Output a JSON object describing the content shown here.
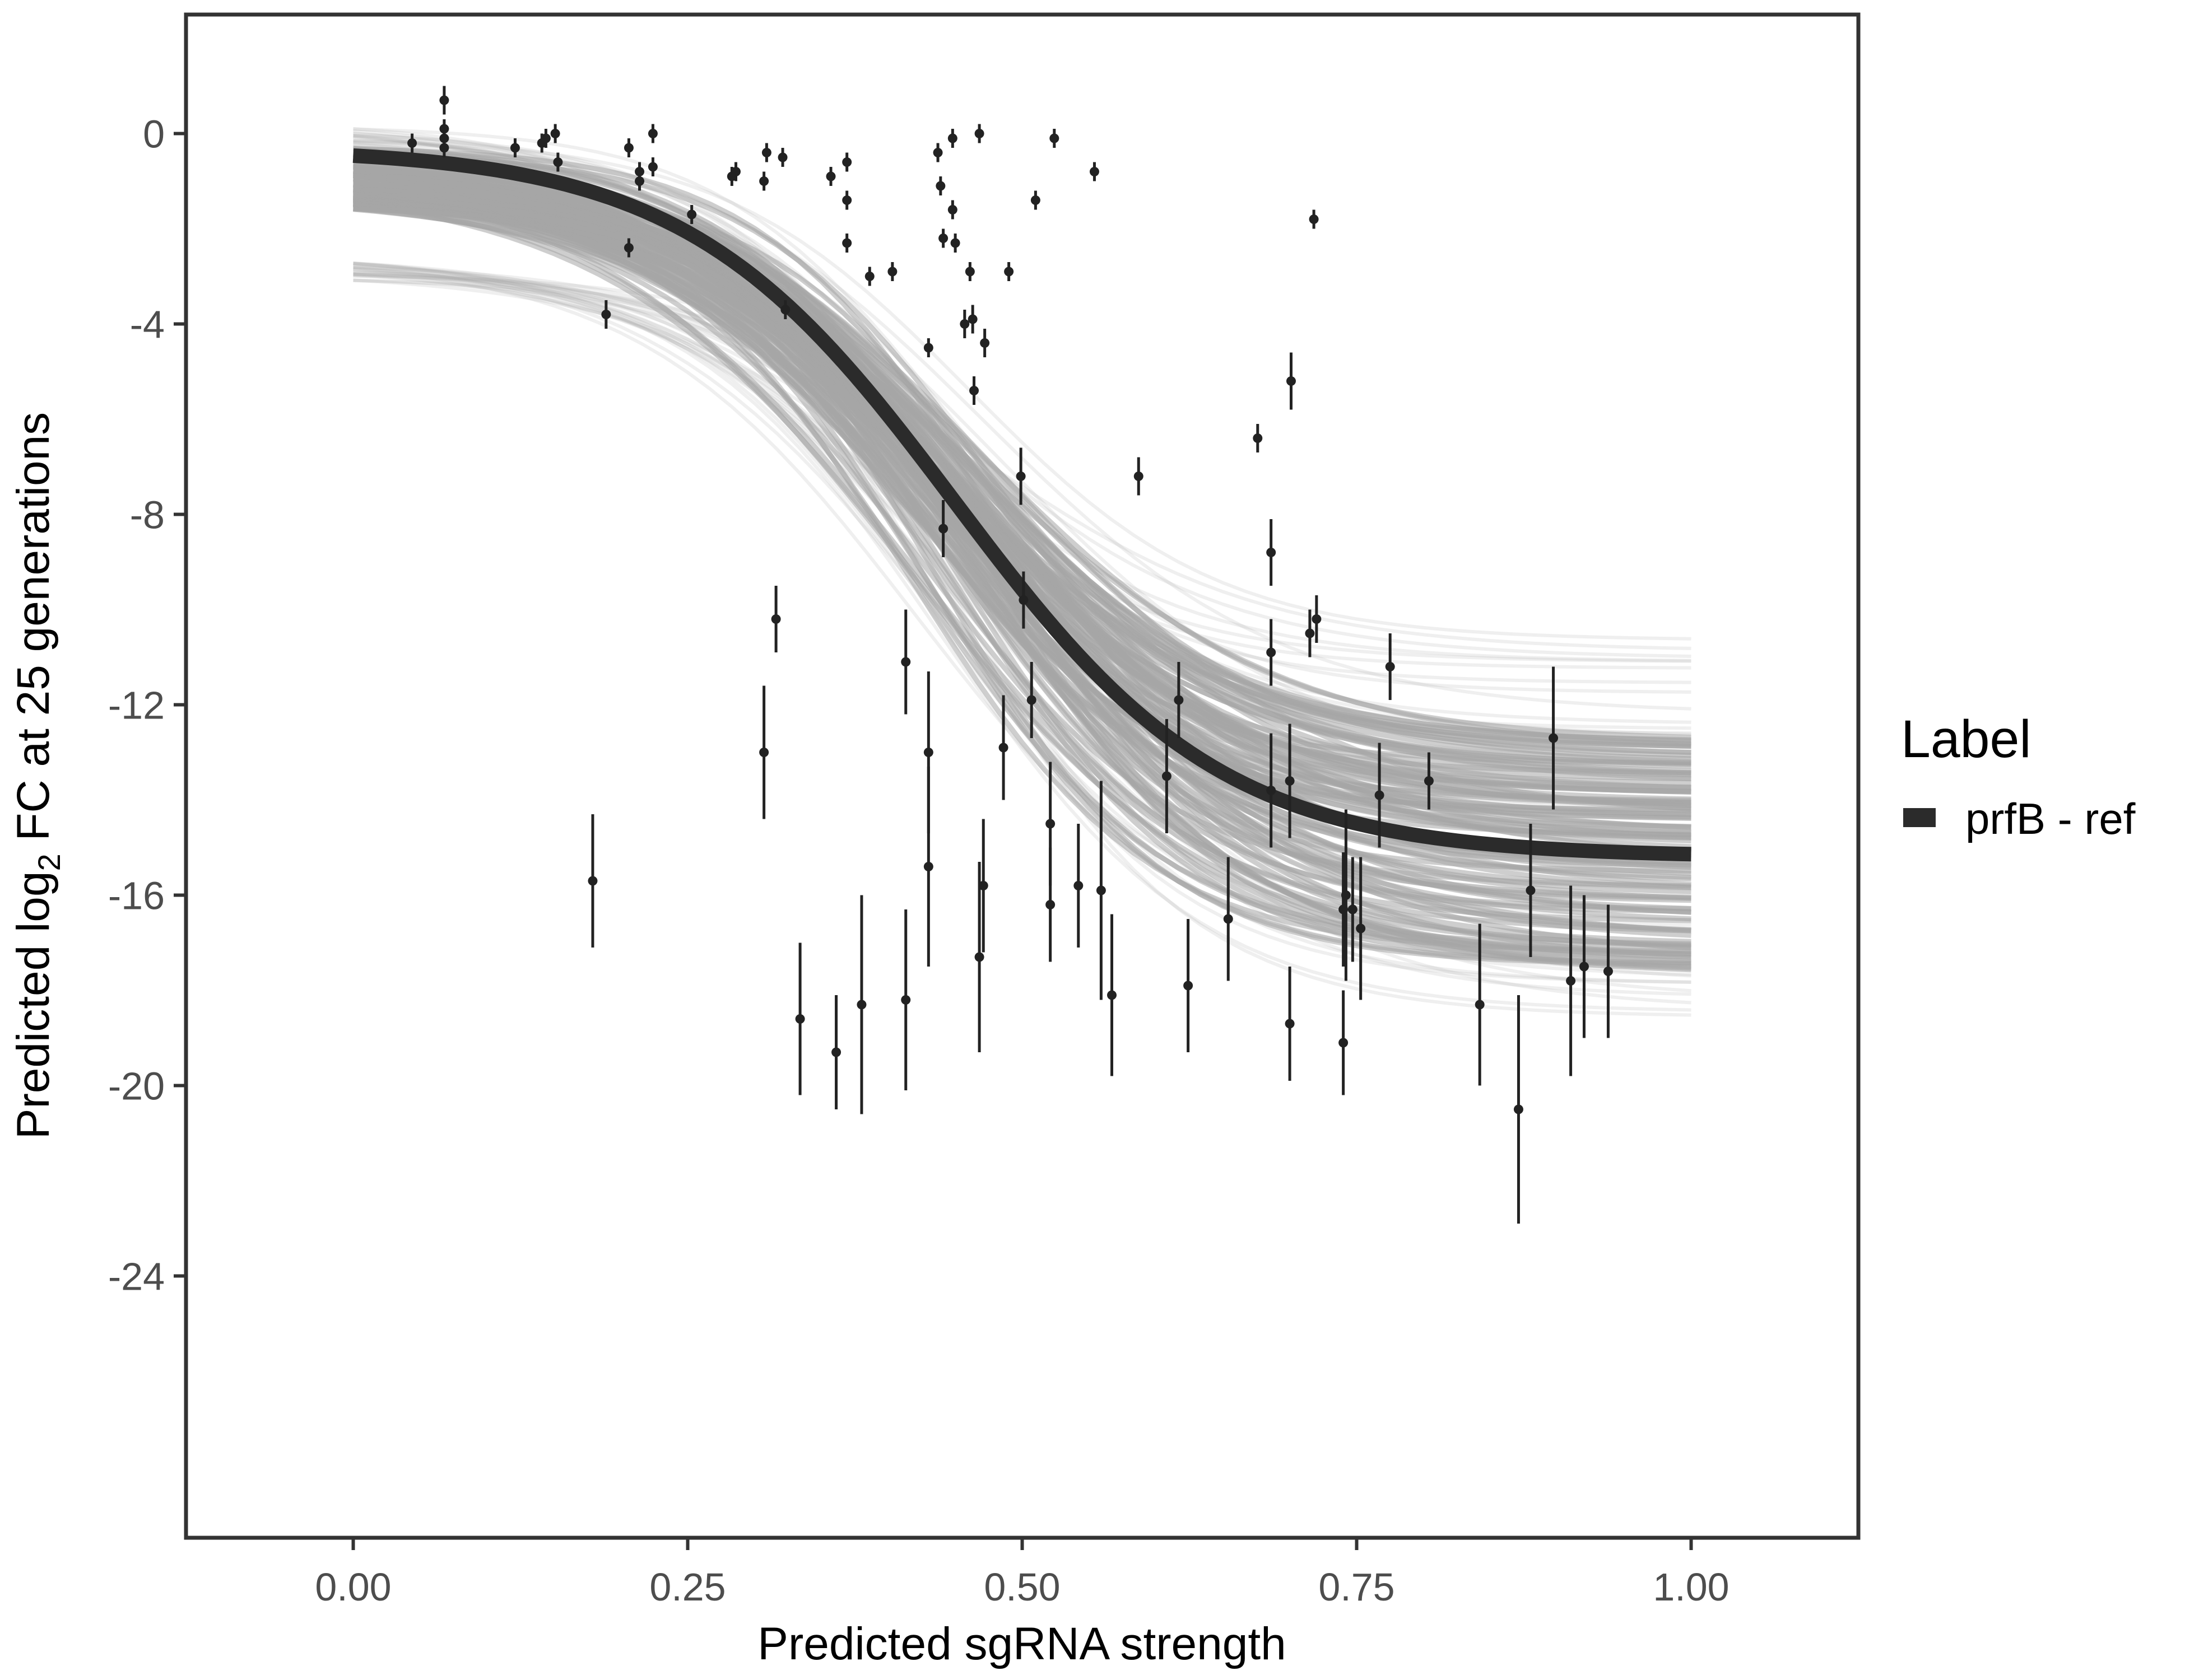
{
  "chart_data": {
    "type": "scatter",
    "xlabel": "Predicted sgRNA strength",
    "ylabel": {
      "prefix": "Predicted  log",
      "subscript": "2",
      "suffix": " FC at 25 generations"
    },
    "xlim": [
      -0.125,
      1.125
    ],
    "ylim": [
      -29.5,
      2.5
    ],
    "x_ticks": [
      0.0,
      0.25,
      0.5,
      0.75,
      1.0
    ],
    "x_tick_labels": [
      "0.00",
      "0.25",
      "0.50",
      "0.75",
      "1.00"
    ],
    "y_ticks": [
      0,
      -4,
      -8,
      -12,
      -16,
      -20,
      -24
    ],
    "y_tick_labels": [
      "0",
      "-4",
      "-8",
      "-12",
      "-16",
      "-20",
      "-24"
    ],
    "grid": false,
    "legend": {
      "title": "Label",
      "position": "right",
      "entries": [
        {
          "label": "prfB - ref",
          "color": "#2b2b2b"
        }
      ]
    },
    "colors": {
      "fit": "#2b2b2b",
      "posterior": "#a6a6a6",
      "points": "#222222",
      "frame": "#333333"
    },
    "fit": {
      "name": "prfB - ref",
      "model": "logistic",
      "upper": -0.3,
      "lower": -15.2,
      "midpoint": 0.45,
      "scale": 0.1
    },
    "posterior_band": {
      "x_range": [
        0.0,
        1.0
      ],
      "upper_start": 0.1,
      "upper_end": -10.6,
      "lower_start": -3.1,
      "lower_end": -19.2,
      "dense_upper_start": -0.1,
      "dense_upper_end": -12.6,
      "dense_lower_start": -1.8,
      "dense_lower_end": -17.7
    },
    "points": [
      {
        "x": 0.044,
        "y": -0.2,
        "lo": -0.4,
        "hi": 0.0
      },
      {
        "x": 0.068,
        "y": 0.7,
        "lo": 0.4,
        "hi": 1.0
      },
      {
        "x": 0.068,
        "y": 0.1,
        "lo": -0.1,
        "hi": 0.3
      },
      {
        "x": 0.068,
        "y": -0.1,
        "lo": -0.3,
        "hi": 0.1
      },
      {
        "x": 0.068,
        "y": -0.3,
        "lo": -0.5,
        "hi": -0.1
      },
      {
        "x": 0.121,
        "y": -0.3,
        "lo": -0.5,
        "hi": -0.1
      },
      {
        "x": 0.141,
        "y": -0.2,
        "lo": -0.4,
        "hi": 0.0
      },
      {
        "x": 0.144,
        "y": -0.1,
        "lo": -0.3,
        "hi": 0.1
      },
      {
        "x": 0.151,
        "y": 0.0,
        "lo": -0.2,
        "hi": 0.2
      },
      {
        "x": 0.153,
        "y": -0.6,
        "lo": -0.8,
        "hi": -0.4
      },
      {
        "x": 0.179,
        "y": -15.7,
        "lo": -17.1,
        "hi": -14.3
      },
      {
        "x": 0.189,
        "y": -3.8,
        "lo": -4.1,
        "hi": -3.5
      },
      {
        "x": 0.206,
        "y": -0.3,
        "lo": -0.5,
        "hi": -0.1
      },
      {
        "x": 0.206,
        "y": -2.4,
        "lo": -2.6,
        "hi": -2.2
      },
      {
        "x": 0.214,
        "y": -0.8,
        "lo": -1.0,
        "hi": -0.6
      },
      {
        "x": 0.214,
        "y": -1.0,
        "lo": -1.2,
        "hi": -0.8
      },
      {
        "x": 0.224,
        "y": 0.0,
        "lo": -0.2,
        "hi": 0.2
      },
      {
        "x": 0.224,
        "y": -0.7,
        "lo": -0.9,
        "hi": -0.5
      },
      {
        "x": 0.253,
        "y": -1.7,
        "lo": -1.9,
        "hi": -1.5
      },
      {
        "x": 0.283,
        "y": -0.9,
        "lo": -1.1,
        "hi": -0.7
      },
      {
        "x": 0.286,
        "y": -0.8,
        "lo": -1.0,
        "hi": -0.6
      },
      {
        "x": 0.307,
        "y": -13.0,
        "lo": -14.4,
        "hi": -11.6
      },
      {
        "x": 0.307,
        "y": -1.0,
        "lo": -1.2,
        "hi": -0.8
      },
      {
        "x": 0.309,
        "y": -0.4,
        "lo": -0.6,
        "hi": -0.2
      },
      {
        "x": 0.316,
        "y": -10.2,
        "lo": -10.9,
        "hi": -9.5
      },
      {
        "x": 0.321,
        "y": -0.5,
        "lo": -0.7,
        "hi": -0.3
      },
      {
        "x": 0.323,
        "y": -3.7,
        "lo": -3.9,
        "hi": -3.5
      },
      {
        "x": 0.334,
        "y": -18.6,
        "lo": -20.2,
        "hi": -17.0
      },
      {
        "x": 0.357,
        "y": -0.9,
        "lo": -1.1,
        "hi": -0.7
      },
      {
        "x": 0.361,
        "y": -19.3,
        "lo": -20.5,
        "hi": -18.1
      },
      {
        "x": 0.369,
        "y": -0.6,
        "lo": -0.8,
        "hi": -0.4
      },
      {
        "x": 0.369,
        "y": -1.4,
        "lo": -1.6,
        "hi": -1.2
      },
      {
        "x": 0.369,
        "y": -2.3,
        "lo": -2.5,
        "hi": -2.1
      },
      {
        "x": 0.38,
        "y": -18.3,
        "lo": -20.6,
        "hi": -16.0
      },
      {
        "x": 0.386,
        "y": -3.0,
        "lo": -3.2,
        "hi": -2.8
      },
      {
        "x": 0.403,
        "y": -2.9,
        "lo": -3.1,
        "hi": -2.7
      },
      {
        "x": 0.413,
        "y": -18.2,
        "lo": -20.1,
        "hi": -16.3
      },
      {
        "x": 0.413,
        "y": -11.1,
        "lo": -12.2,
        "hi": -10.0
      },
      {
        "x": 0.43,
        "y": -13.0,
        "lo": -14.7,
        "hi": -11.3
      },
      {
        "x": 0.43,
        "y": -15.4,
        "lo": -17.5,
        "hi": -13.3
      },
      {
        "x": 0.43,
        "y": -4.5,
        "lo": -4.7,
        "hi": -4.3
      },
      {
        "x": 0.437,
        "y": -0.4,
        "lo": -0.6,
        "hi": -0.2
      },
      {
        "x": 0.439,
        "y": -1.1,
        "lo": -1.3,
        "hi": -0.9
      },
      {
        "x": 0.441,
        "y": -2.2,
        "lo": -2.4,
        "hi": -2.0
      },
      {
        "x": 0.441,
        "y": -8.3,
        "lo": -8.9,
        "hi": -7.7
      },
      {
        "x": 0.448,
        "y": -0.1,
        "lo": -0.3,
        "hi": 0.1
      },
      {
        "x": 0.448,
        "y": -1.6,
        "lo": -1.8,
        "hi": -1.4
      },
      {
        "x": 0.45,
        "y": -2.3,
        "lo": -2.5,
        "hi": -2.1
      },
      {
        "x": 0.457,
        "y": -4.0,
        "lo": -4.3,
        "hi": -3.7
      },
      {
        "x": 0.461,
        "y": -2.9,
        "lo": -3.1,
        "hi": -2.7
      },
      {
        "x": 0.463,
        "y": -3.9,
        "lo": -4.2,
        "hi": -3.6
      },
      {
        "x": 0.464,
        "y": -5.4,
        "lo": -5.7,
        "hi": -5.1
      },
      {
        "x": 0.468,
        "y": 0.0,
        "lo": -0.2,
        "hi": 0.2
      },
      {
        "x": 0.468,
        "y": -17.3,
        "lo": -19.3,
        "hi": -15.3
      },
      {
        "x": 0.471,
        "y": -15.8,
        "lo": -17.2,
        "hi": -14.4
      },
      {
        "x": 0.472,
        "y": -4.4,
        "lo": -4.7,
        "hi": -4.1
      },
      {
        "x": 0.486,
        "y": -12.9,
        "lo": -14.0,
        "hi": -11.8
      },
      {
        "x": 0.49,
        "y": -2.9,
        "lo": -3.1,
        "hi": -2.7
      },
      {
        "x": 0.499,
        "y": -7.2,
        "lo": -7.8,
        "hi": -6.6
      },
      {
        "x": 0.501,
        "y": -9.8,
        "lo": -10.4,
        "hi": -9.2
      },
      {
        "x": 0.507,
        "y": -11.9,
        "lo": -12.7,
        "hi": -11.1
      },
      {
        "x": 0.51,
        "y": -1.4,
        "lo": -1.6,
        "hi": -1.2
      },
      {
        "x": 0.521,
        "y": -14.5,
        "lo": -15.8,
        "hi": -13.2
      },
      {
        "x": 0.521,
        "y": -16.2,
        "lo": -17.4,
        "hi": -15.0
      },
      {
        "x": 0.524,
        "y": -0.1,
        "lo": -0.3,
        "hi": 0.1
      },
      {
        "x": 0.542,
        "y": -15.8,
        "lo": -17.1,
        "hi": -14.5
      },
      {
        "x": 0.554,
        "y": -0.8,
        "lo": -1.0,
        "hi": -0.6
      },
      {
        "x": 0.559,
        "y": -15.9,
        "lo": -18.2,
        "hi": -13.6
      },
      {
        "x": 0.567,
        "y": -18.1,
        "lo": -19.8,
        "hi": -16.4
      },
      {
        "x": 0.587,
        "y": -7.2,
        "lo": -7.6,
        "hi": -6.8
      },
      {
        "x": 0.608,
        "y": -13.5,
        "lo": -14.7,
        "hi": -12.3
      },
      {
        "x": 0.617,
        "y": -11.9,
        "lo": -12.7,
        "hi": -11.1
      },
      {
        "x": 0.624,
        "y": -17.9,
        "lo": -19.3,
        "hi": -16.5
      },
      {
        "x": 0.654,
        "y": -16.5,
        "lo": -17.8,
        "hi": -15.2
      },
      {
        "x": 0.676,
        "y": -6.4,
        "lo": -6.7,
        "hi": -6.1
      },
      {
        "x": 0.686,
        "y": -8.8,
        "lo": -9.5,
        "hi": -8.1
      },
      {
        "x": 0.686,
        "y": -10.9,
        "lo": -11.6,
        "hi": -10.2
      },
      {
        "x": 0.686,
        "y": -13.8,
        "lo": -15.0,
        "hi": -12.6
      },
      {
        "x": 0.7,
        "y": -13.6,
        "lo": -14.8,
        "hi": -12.4
      },
      {
        "x": 0.7,
        "y": -18.7,
        "lo": -19.9,
        "hi": -17.5
      },
      {
        "x": 0.701,
        "y": -5.2,
        "lo": -5.8,
        "hi": -4.6
      },
      {
        "x": 0.715,
        "y": -10.5,
        "lo": -11.0,
        "hi": -10.0
      },
      {
        "x": 0.718,
        "y": -1.8,
        "lo": -2.0,
        "hi": -1.6
      },
      {
        "x": 0.72,
        "y": -10.2,
        "lo": -10.7,
        "hi": -9.7
      },
      {
        "x": 0.74,
        "y": -19.1,
        "lo": -20.2,
        "hi": -18.0
      },
      {
        "x": 0.74,
        "y": -16.3,
        "lo": -17.5,
        "hi": -15.1
      },
      {
        "x": 0.742,
        "y": -16.0,
        "lo": -17.8,
        "hi": -14.2
      },
      {
        "x": 0.747,
        "y": -16.3,
        "lo": -17.4,
        "hi": -15.2
      },
      {
        "x": 0.753,
        "y": -16.7,
        "lo": -18.2,
        "hi": -15.2
      },
      {
        "x": 0.767,
        "y": -13.9,
        "lo": -15.0,
        "hi": -12.8
      },
      {
        "x": 0.775,
        "y": -11.2,
        "lo": -11.9,
        "hi": -10.5
      },
      {
        "x": 0.804,
        "y": -13.6,
        "lo": -14.2,
        "hi": -13.0
      },
      {
        "x": 0.842,
        "y": -18.3,
        "lo": -20.0,
        "hi": -16.6
      },
      {
        "x": 0.871,
        "y": -20.5,
        "lo": -22.9,
        "hi": -18.1
      },
      {
        "x": 0.88,
        "y": -15.9,
        "lo": -17.3,
        "hi": -14.5
      },
      {
        "x": 0.897,
        "y": -12.7,
        "lo": -14.2,
        "hi": -11.2
      },
      {
        "x": 0.91,
        "y": -17.8,
        "lo": -19.8,
        "hi": -15.8
      },
      {
        "x": 0.92,
        "y": -17.5,
        "lo": -19.0,
        "hi": -16.0
      },
      {
        "x": 0.938,
        "y": -17.6,
        "lo": -19.0,
        "hi": -16.2
      }
    ]
  }
}
